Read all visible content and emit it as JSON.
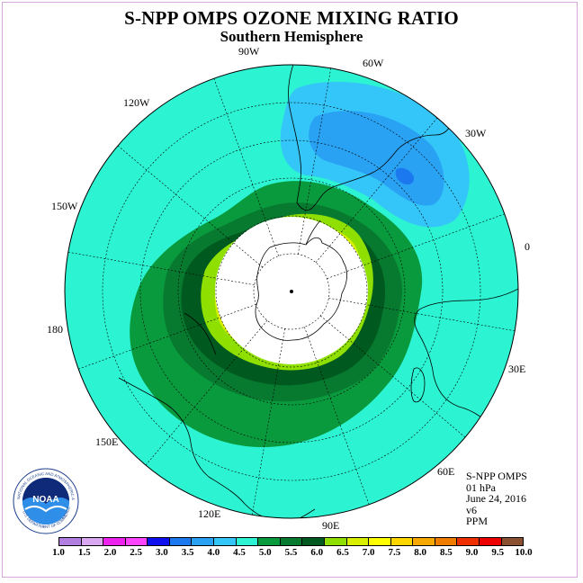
{
  "title": "S-NPP OMPS OZONE MIXING RATIO",
  "subtitle": "Southern Hemisphere",
  "map": {
    "projection": "south-polar-stereographic",
    "background_color": "#2cf4d2",
    "no_data_color": "#ffffff",
    "longitude_labels": [
      {
        "text": "90W",
        "name": "lon-label-90w"
      },
      {
        "text": "60W",
        "name": "lon-label-60w"
      },
      {
        "text": "120W",
        "name": "lon-label-120w"
      },
      {
        "text": "30W",
        "name": "lon-label-30w"
      },
      {
        "text": "150W",
        "name": "lon-label-150w"
      },
      {
        "text": "0",
        "name": "lon-label-0"
      },
      {
        "text": "180",
        "name": "lon-label-180"
      },
      {
        "text": "30E",
        "name": "lon-label-30e"
      },
      {
        "text": "150E",
        "name": "lon-label-150e"
      },
      {
        "text": "60E",
        "name": "lon-label-60e"
      },
      {
        "text": "120E",
        "name": "lon-label-120e"
      },
      {
        "text": "90E",
        "name": "lon-label-90e"
      }
    ]
  },
  "info": {
    "product": "S-NPP OMPS",
    "level": "01 hPa",
    "date": "June 24, 2016",
    "version": "v6",
    "units": "PPM"
  },
  "logo": {
    "text": "NOAA",
    "ring_text": "NATIONAL OCEANIC AND ATMOSPHERIC ADMINISTRATION",
    "ring_text_bottom": "U.S. DEPARTMENT OF COMMERCE"
  },
  "colorbar": {
    "colors": [
      "#b27fe0",
      "#d8a7f0",
      "#ee22ee",
      "#ff44ff",
      "#1010ee",
      "#1c78ee",
      "#2aa2f4",
      "#34c6f8",
      "#2cf4d2",
      "#0a9a3e",
      "#077a30",
      "#005a20",
      "#8fe000",
      "#d8f000",
      "#ffff00",
      "#ffd600",
      "#f6a800",
      "#f07c00",
      "#ee3000",
      "#ee0000",
      "#8a5030"
    ],
    "ticks": [
      "1.0",
      "1.5",
      "2.0",
      "2.5",
      "3.0",
      "3.5",
      "4.0",
      "4.5",
      "5.0",
      "5.5",
      "6.0",
      "6.5",
      "7.0",
      "7.5",
      "8.0",
      "8.5",
      "9.0",
      "9.5",
      "10.0"
    ]
  }
}
